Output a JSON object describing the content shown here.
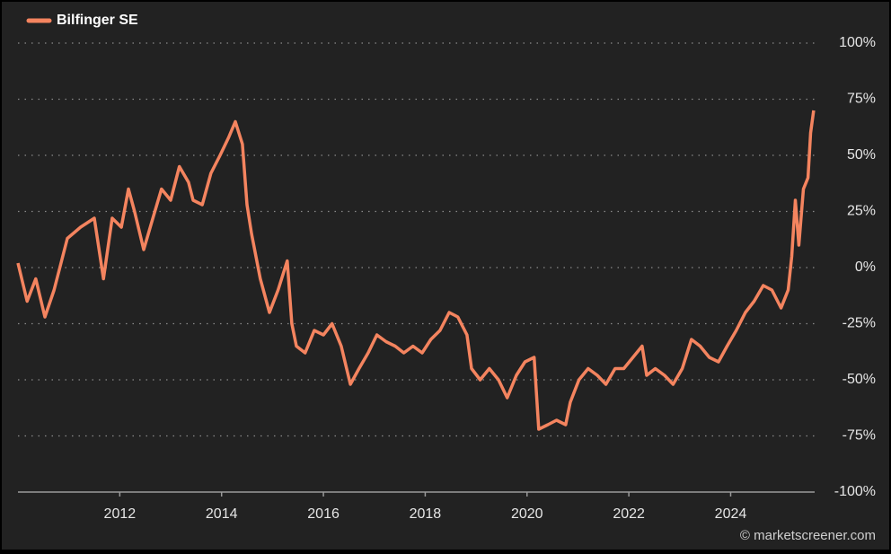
{
  "chart_data": {
    "type": "line",
    "source": "© marketscreener.com",
    "series": [
      {
        "name": "Bilfinger SE",
        "color": "#f4845f",
        "x": [
          2010.0,
          2010.18,
          2010.35,
          2010.53,
          2010.71,
          2010.97,
          2011.23,
          2011.5,
          2011.68,
          2011.85,
          2012.03,
          2012.17,
          2012.29,
          2012.47,
          2012.65,
          2012.82,
          2013.0,
          2013.17,
          2013.35,
          2013.44,
          2013.62,
          2013.79,
          2013.97,
          2014.14,
          2014.27,
          2014.41,
          2014.5,
          2014.59,
          2014.76,
          2014.94,
          2015.11,
          2015.29,
          2015.38,
          2015.47,
          2015.64,
          2015.82,
          2016.0,
          2016.17,
          2016.35,
          2016.53,
          2016.7,
          2016.88,
          2017.05,
          2017.23,
          2017.41,
          2017.58,
          2017.76,
          2017.94,
          2018.11,
          2018.29,
          2018.47,
          2018.64,
          2018.82,
          2018.91,
          2019.08,
          2019.26,
          2019.44,
          2019.61,
          2019.79,
          2019.96,
          2020.14,
          2020.23,
          2020.41,
          2020.58,
          2020.76,
          2020.85,
          2021.02,
          2021.2,
          2021.38,
          2021.55,
          2021.73,
          2021.9,
          2022.08,
          2022.26,
          2022.35,
          2022.52,
          2022.7,
          2022.87,
          2023.05,
          2023.23,
          2023.4,
          2023.58,
          2023.76,
          2023.93,
          2024.11,
          2024.29,
          2024.46,
          2024.64,
          2024.81,
          2024.99,
          2025.13,
          2025.2,
          2025.27,
          2025.34,
          2025.43,
          2025.52,
          2025.57,
          2025.63
        ],
        "values": [
          2,
          -15,
          -5,
          -22,
          -10,
          13,
          18,
          22,
          -5,
          22,
          18,
          35,
          25,
          8,
          22,
          35,
          30,
          45,
          38,
          30,
          28,
          42,
          50,
          58,
          65,
          55,
          28,
          15,
          -5,
          -20,
          -10,
          3,
          -25,
          -35,
          -38,
          -28,
          -30,
          -25,
          -35,
          -52,
          -45,
          -38,
          -30,
          -33,
          -35,
          -38,
          -35,
          -38,
          -32,
          -28,
          -20,
          -22,
          -30,
          -45,
          -50,
          -45,
          -50,
          -58,
          -48,
          -42,
          -40,
          -72,
          -70,
          -68,
          -70,
          -60,
          -50,
          -45,
          -48,
          -52,
          -45,
          -45,
          -40,
          -35,
          -48,
          -45,
          -48,
          -52,
          -45,
          -32,
          -35,
          -40,
          -42,
          -35,
          -28,
          -20,
          -15,
          -8,
          -10,
          -18,
          -10,
          5,
          30,
          10,
          35,
          40,
          60,
          70
        ]
      }
    ],
    "xlim": [
      2010.0,
      2025.65
    ],
    "xticks": [
      2012,
      2014,
      2016,
      2018,
      2020,
      2022,
      2024
    ],
    "ylim": [
      -100,
      100
    ],
    "yticks": [
      {
        "value": -100,
        "label": "-100%"
      },
      {
        "value": -75,
        "label": "-75%"
      },
      {
        "value": -50,
        "label": "-50%"
      },
      {
        "value": -25,
        "label": "-25%"
      },
      {
        "value": 0,
        "label": "0%"
      },
      {
        "value": 25,
        "label": "25%"
      },
      {
        "value": 50,
        "label": "50%"
      },
      {
        "value": 75,
        "label": "75%"
      },
      {
        "value": 100,
        "label": "100%"
      }
    ],
    "grid": true,
    "legend": "top-left"
  }
}
